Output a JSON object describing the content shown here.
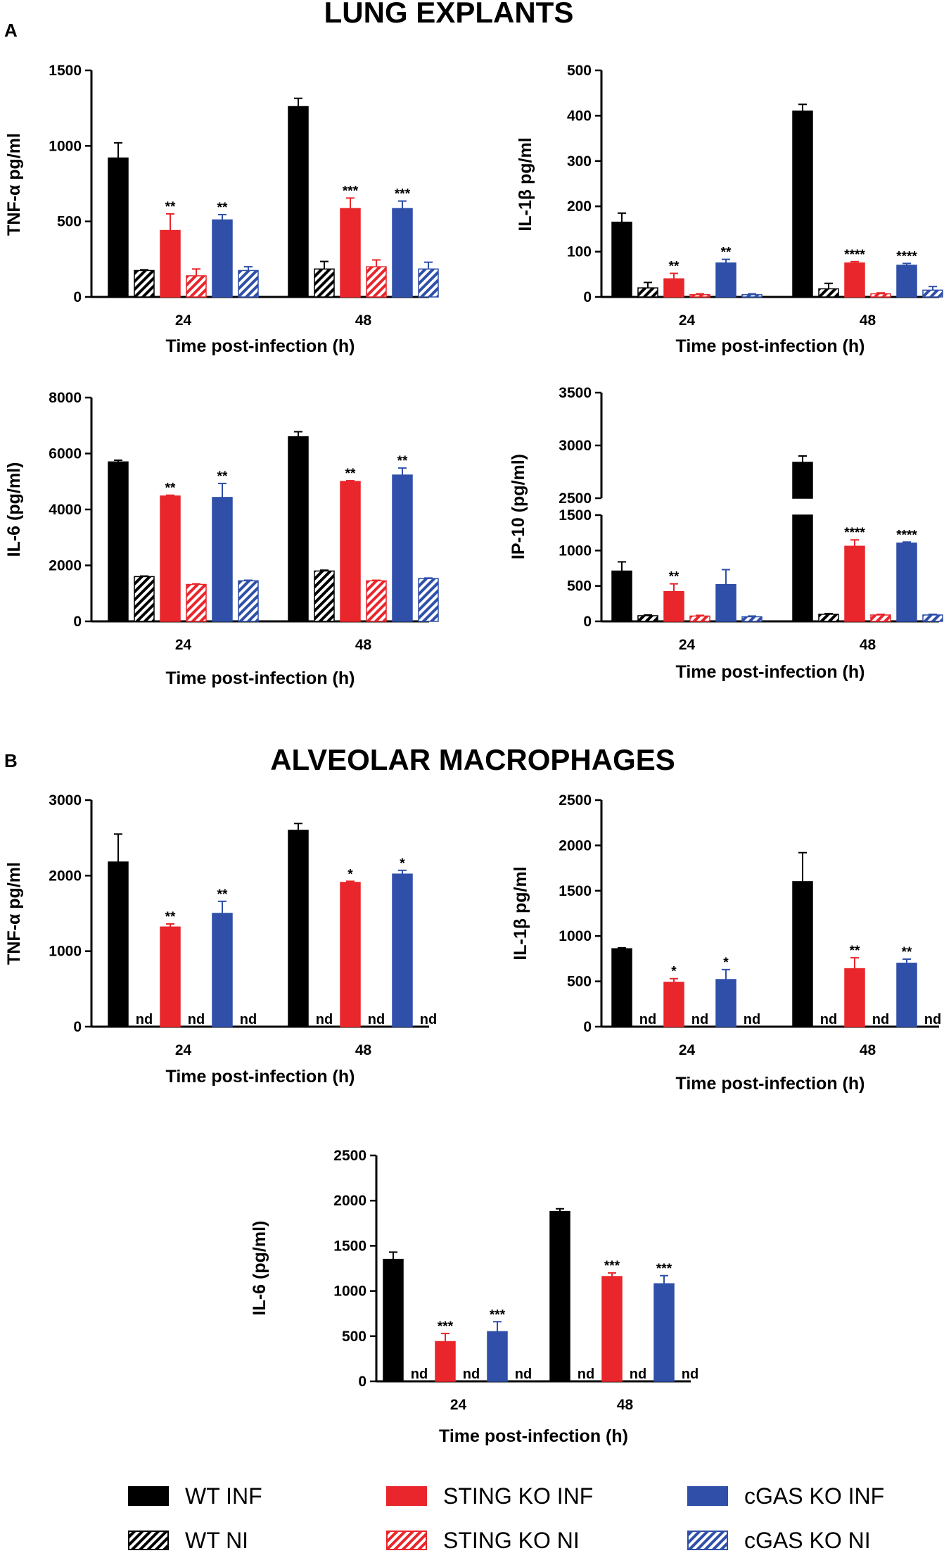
{
  "figure": {
    "panel_a_label": "A",
    "panel_b_label": "B",
    "section_a_title": "LUNG EXPLANTS",
    "section_b_title": "ALVEOLAR MACROPHAGES"
  },
  "colors": {
    "wt": "#000000",
    "sting": "#e8262b",
    "cgas": "#2f4fa8"
  },
  "legend": [
    {
      "key": "wt_inf",
      "label": "WT INF",
      "color": "#000000",
      "hatched": false
    },
    {
      "key": "sting_inf",
      "label": "STING KO INF",
      "color": "#e8262b",
      "hatched": false
    },
    {
      "key": "cgas_inf",
      "label": "cGAS KO INF",
      "color": "#2f4fa8",
      "hatched": false
    },
    {
      "key": "wt_ni",
      "label": "WT NI",
      "color": "#000000",
      "hatched": true
    },
    {
      "key": "sting_ni",
      "label": "STING KO NI",
      "color": "#e8262b",
      "hatched": true
    },
    {
      "key": "cgas_ni",
      "label": "cGAS KO NI",
      "color": "#2f4fa8",
      "hatched": true
    }
  ],
  "chart_data": [
    {
      "id": "a_tnf",
      "type": "bar",
      "ylabel": "TNF-α pg/ml",
      "xlabel": "Time post-infection (h)",
      "categories": [
        "24",
        "48"
      ],
      "ylim": [
        0,
        1500
      ],
      "yticks": [
        0,
        500,
        1000,
        1500
      ],
      "series": [
        {
          "name": "WT INF",
          "values": [
            920,
            1260
          ],
          "errors": [
            100,
            55
          ],
          "sig": [
            "",
            ""
          ]
        },
        {
          "name": "WT NI",
          "values": [
            175,
            185
          ],
          "errors": [
            5,
            50
          ],
          "sig": [
            "",
            ""
          ]
        },
        {
          "name": "STING KO INF",
          "values": [
            440,
            585
          ],
          "errors": [
            110,
            70
          ],
          "sig": [
            "**",
            "***"
          ]
        },
        {
          "name": "STING KO NI",
          "values": [
            140,
            200
          ],
          "errors": [
            45,
            45
          ],
          "sig": [
            "",
            ""
          ]
        },
        {
          "name": "cGAS KO INF",
          "values": [
            510,
            585
          ],
          "errors": [
            35,
            50
          ],
          "sig": [
            "**",
            "***"
          ]
        },
        {
          "name": "cGAS KO NI",
          "values": [
            175,
            185
          ],
          "errors": [
            25,
            45
          ],
          "sig": [
            "",
            ""
          ]
        }
      ]
    },
    {
      "id": "a_il1b",
      "type": "bar",
      "ylabel": "IL-1β pg/ml",
      "xlabel": "Time post-infection (h)",
      "categories": [
        "24",
        "48"
      ],
      "ylim": [
        0,
        500
      ],
      "yticks": [
        0,
        100,
        200,
        300,
        400,
        500
      ],
      "series": [
        {
          "name": "WT INF",
          "values": [
            165,
            410
          ],
          "errors": [
            20,
            15
          ],
          "sig": [
            "",
            ""
          ]
        },
        {
          "name": "WT NI",
          "values": [
            20,
            18
          ],
          "errors": [
            12,
            12
          ],
          "sig": [
            "",
            ""
          ]
        },
        {
          "name": "STING KO INF",
          "values": [
            40,
            75
          ],
          "errors": [
            12,
            3
          ],
          "sig": [
            "**",
            "****"
          ]
        },
        {
          "name": "STING KO NI",
          "values": [
            5,
            7
          ],
          "errors": [
            2,
            2
          ],
          "sig": [
            "",
            ""
          ]
        },
        {
          "name": "cGAS KO INF",
          "values": [
            75,
            70
          ],
          "errors": [
            8,
            4
          ],
          "sig": [
            "**",
            "****"
          ]
        },
        {
          "name": "cGAS KO NI",
          "values": [
            5,
            15
          ],
          "errors": [
            2,
            8
          ],
          "sig": [
            "",
            ""
          ]
        }
      ]
    },
    {
      "id": "a_il6",
      "type": "bar",
      "ylabel": "IL-6 (pg/ml)",
      "xlabel": "Time post-infection (h)",
      "categories": [
        "24",
        "48"
      ],
      "ylim": [
        0,
        8000
      ],
      "yticks": [
        0,
        2000,
        4000,
        6000,
        8000
      ],
      "series": [
        {
          "name": "WT INF",
          "values": [
            5700,
            6600
          ],
          "errors": [
            60,
            180
          ],
          "sig": [
            "",
            ""
          ]
        },
        {
          "name": "WT NI",
          "values": [
            1600,
            1800
          ],
          "errors": [
            20,
            30
          ],
          "sig": [
            "",
            ""
          ]
        },
        {
          "name": "STING KO INF",
          "values": [
            4480,
            5000
          ],
          "errors": [
            30,
            30
          ],
          "sig": [
            "**",
            "**"
          ]
        },
        {
          "name": "STING KO NI",
          "values": [
            1320,
            1450
          ],
          "errors": [
            20,
            20
          ],
          "sig": [
            "",
            ""
          ]
        },
        {
          "name": "cGAS KO INF",
          "values": [
            4430,
            5230
          ],
          "errors": [
            500,
            250
          ],
          "sig": [
            "**",
            "**"
          ]
        },
        {
          "name": "cGAS KO NI",
          "values": [
            1450,
            1530
          ],
          "errors": [
            20,
            20
          ],
          "sig": [
            "",
            ""
          ]
        }
      ]
    },
    {
      "id": "a_ip10",
      "type": "bar",
      "ylabel": "IP-10 (pg/ml)",
      "xlabel": "Time post-infection (h)",
      "categories": [
        "24",
        "48"
      ],
      "ylim": [
        0,
        3500
      ],
      "axis_break": [
        1500,
        2500
      ],
      "yticks_lower": [
        0,
        500,
        1000,
        1500
      ],
      "yticks_upper": [
        2500,
        3000,
        3500
      ],
      "series": [
        {
          "name": "WT INF",
          "values": [
            710,
            2840
          ],
          "errors": [
            130,
            60
          ],
          "sig": [
            "",
            ""
          ]
        },
        {
          "name": "WT NI",
          "values": [
            80,
            100
          ],
          "errors": [
            10,
            10
          ],
          "sig": [
            "",
            ""
          ]
        },
        {
          "name": "STING KO INF",
          "values": [
            420,
            1060
          ],
          "errors": [
            110,
            90
          ],
          "sig": [
            "**",
            "****"
          ]
        },
        {
          "name": "STING KO NI",
          "values": [
            75,
            90
          ],
          "errors": [
            10,
            10
          ],
          "sig": [
            "",
            ""
          ]
        },
        {
          "name": "cGAS KO INF",
          "values": [
            520,
            1105
          ],
          "errors": [
            210,
            15
          ],
          "sig": [
            "",
            "****"
          ]
        },
        {
          "name": "cGAS KO NI",
          "values": [
            65,
            90
          ],
          "errors": [
            10,
            10
          ],
          "sig": [
            "",
            ""
          ]
        }
      ]
    },
    {
      "id": "b_tnf",
      "type": "bar",
      "ylabel": "TNF-α pg/ml",
      "xlabel": "Time post-infection (h)",
      "categories": [
        "24",
        "48"
      ],
      "ylim": [
        0,
        3000
      ],
      "yticks": [
        0,
        1000,
        2000,
        3000
      ],
      "series": [
        {
          "name": "WT INF",
          "values": [
            2180,
            2600
          ],
          "errors": [
            370,
            90
          ],
          "sig": [
            "",
            ""
          ],
          "nd": [
            false,
            false
          ]
        },
        {
          "name": "WT NI",
          "values": [
            0,
            0
          ],
          "errors": [
            0,
            0
          ],
          "sig": [
            "",
            ""
          ],
          "nd": [
            true,
            true
          ]
        },
        {
          "name": "STING KO INF",
          "values": [
            1320,
            1910
          ],
          "errors": [
            40,
            15
          ],
          "sig": [
            "**",
            "*"
          ],
          "nd": [
            false,
            false
          ]
        },
        {
          "name": "STING KO NI",
          "values": [
            0,
            0
          ],
          "errors": [
            0,
            0
          ],
          "sig": [
            "",
            ""
          ],
          "nd": [
            true,
            true
          ]
        },
        {
          "name": "cGAS KO INF",
          "values": [
            1500,
            2020
          ],
          "errors": [
            160,
            50
          ],
          "sig": [
            "**",
            "*"
          ],
          "nd": [
            false,
            false
          ]
        },
        {
          "name": "cGAS KO NI",
          "values": [
            0,
            0
          ],
          "errors": [
            0,
            0
          ],
          "sig": [
            "",
            ""
          ],
          "nd": [
            true,
            true
          ]
        }
      ],
      "nd_label": "nd"
    },
    {
      "id": "b_il1b",
      "type": "bar",
      "ylabel": "IL-1β pg/ml",
      "xlabel": "Time post-infection (h)",
      "categories": [
        "24",
        "48"
      ],
      "ylim": [
        0,
        2500
      ],
      "yticks": [
        0,
        500,
        1000,
        1500,
        2000,
        2500
      ],
      "series": [
        {
          "name": "WT INF",
          "values": [
            860,
            1600
          ],
          "errors": [
            10,
            320
          ],
          "sig": [
            "",
            ""
          ],
          "nd": [
            false,
            false
          ]
        },
        {
          "name": "WT NI",
          "values": [
            0,
            0
          ],
          "errors": [
            0,
            0
          ],
          "sig": [
            "",
            ""
          ],
          "nd": [
            true,
            true
          ]
        },
        {
          "name": "STING KO INF",
          "values": [
            490,
            640
          ],
          "errors": [
            40,
            120
          ],
          "sig": [
            "*",
            "**"
          ],
          "nd": [
            false,
            false
          ]
        },
        {
          "name": "STING KO NI",
          "values": [
            0,
            0
          ],
          "errors": [
            0,
            0
          ],
          "sig": [
            "",
            ""
          ],
          "nd": [
            true,
            true
          ]
        },
        {
          "name": "cGAS KO INF",
          "values": [
            520,
            700
          ],
          "errors": [
            110,
            45
          ],
          "sig": [
            "*",
            "**"
          ],
          "nd": [
            false,
            false
          ]
        },
        {
          "name": "cGAS KO NI",
          "values": [
            0,
            0
          ],
          "errors": [
            0,
            0
          ],
          "sig": [
            "",
            ""
          ],
          "nd": [
            true,
            true
          ]
        }
      ],
      "nd_label": "nd"
    },
    {
      "id": "b_il6",
      "type": "bar",
      "ylabel": "IL-6 (pg/ml)",
      "xlabel": "Time post-infection (h)",
      "categories": [
        "24",
        "48"
      ],
      "ylim": [
        0,
        2500
      ],
      "yticks": [
        0,
        500,
        1000,
        1500,
        2000,
        2500
      ],
      "series": [
        {
          "name": "WT INF",
          "values": [
            1350,
            1880
          ],
          "errors": [
            80,
            30
          ],
          "sig": [
            "",
            ""
          ],
          "nd": [
            false,
            false
          ]
        },
        {
          "name": "WT NI",
          "values": [
            0,
            0
          ],
          "errors": [
            0,
            0
          ],
          "sig": [
            "",
            ""
          ],
          "nd": [
            true,
            true
          ]
        },
        {
          "name": "STING KO INF",
          "values": [
            440,
            1160
          ],
          "errors": [
            90,
            40
          ],
          "sig": [
            "***",
            "***"
          ],
          "nd": [
            false,
            false
          ]
        },
        {
          "name": "STING KO NI",
          "values": [
            0,
            0
          ],
          "errors": [
            0,
            0
          ],
          "sig": [
            "",
            ""
          ],
          "nd": [
            true,
            true
          ]
        },
        {
          "name": "cGAS KO INF",
          "values": [
            550,
            1080
          ],
          "errors": [
            110,
            90
          ],
          "sig": [
            "***",
            "***"
          ],
          "nd": [
            false,
            false
          ]
        },
        {
          "name": "cGAS KO NI",
          "values": [
            0,
            0
          ],
          "errors": [
            0,
            0
          ],
          "sig": [
            "",
            ""
          ],
          "nd": [
            true,
            true
          ]
        }
      ],
      "nd_label": "nd"
    }
  ]
}
